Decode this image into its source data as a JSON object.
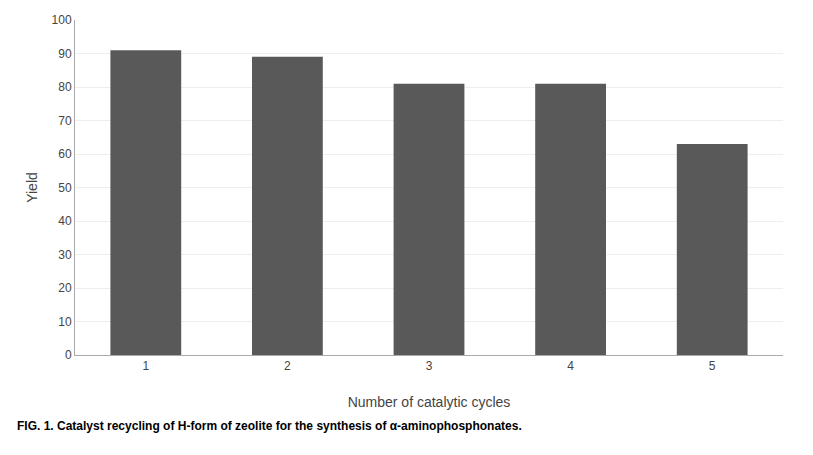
{
  "chart_data": {
    "type": "bar",
    "x": [
      1,
      2,
      3,
      4,
      5
    ],
    "values": [
      91,
      89,
      81,
      81,
      63
    ],
    "color": "#595959",
    "xlabel": "Number of catalytic cycles",
    "ylabel": "Yield",
    "xlim": [
      0.5,
      5.5
    ],
    "xticks": [
      1,
      2,
      3,
      4,
      5
    ],
    "ylim": [
      0,
      100
    ],
    "yticks": [
      0,
      10,
      20,
      30,
      40,
      50,
      60,
      70,
      80,
      90,
      100
    ],
    "grid": true,
    "annotations": [
      "FIG. 1. Catalyst recycling of H-form of zeolite for the synthesis of α-aminophosphonates."
    ]
  }
}
